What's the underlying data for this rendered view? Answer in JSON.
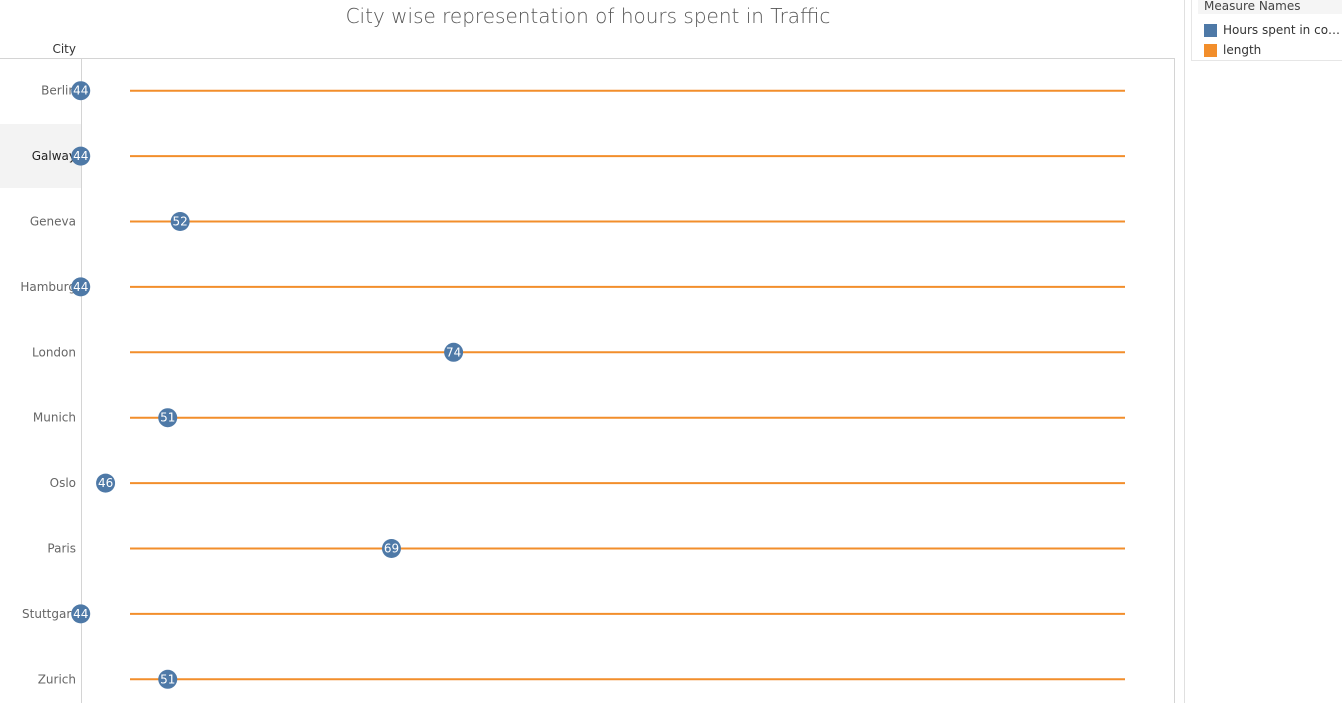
{
  "chart_data": {
    "type": "scatter",
    "title": "City wise representation of hours spent in Traffic",
    "row_header": "City",
    "categories": [
      "Berlin",
      "Galway",
      "Geneva",
      "Hamburg",
      "London",
      "Munich",
      "Oslo",
      "Paris",
      "Stuttgart",
      "Zurich"
    ],
    "series": [
      {
        "name": "Hours spent in conge..",
        "values": [
          44,
          44,
          52,
          44,
          74,
          51,
          46,
          69,
          44,
          51
        ],
        "color": "#4e79a7"
      },
      {
        "name": "length",
        "color": "#f28e2b"
      }
    ],
    "xlim": [
      40,
      80
    ],
    "data_labels": true,
    "grid": false,
    "highlighted_category": "Galway"
  },
  "legend": {
    "title": "Measure Names",
    "placement": "top-right"
  }
}
